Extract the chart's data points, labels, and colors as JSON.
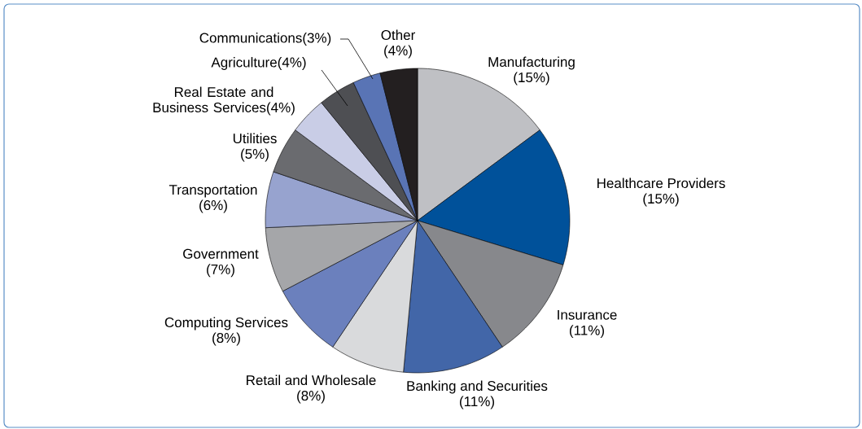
{
  "chart_data": {
    "type": "pie",
    "categories": [
      "Manufacturing",
      "Healthcare Providers",
      "Insurance",
      "Banking and Securities",
      "Retail and Wholesale",
      "Computing Services",
      "Government",
      "Transportation",
      "Utilities",
      "Real Estate and Business Services",
      "Agriculture",
      "Communications",
      "Other"
    ],
    "values": [
      15,
      15,
      11,
      11,
      8,
      8,
      7,
      6,
      5,
      4,
      4,
      3,
      4
    ],
    "value_labels": [
      "(15%)",
      "(15%)",
      "(11%)",
      "(11%)",
      "(8%)",
      "(8%)",
      "(7%)",
      "(6%)",
      "(5%)",
      "(4%)",
      "(4%)",
      "(3%)",
      "(4%)"
    ],
    "colors": [
      "#bfc0c4",
      "#00519a",
      "#87888c",
      "#4266a8",
      "#d9dadc",
      "#6b80bd",
      "#a5a6a9",
      "#97a3cf",
      "#6a6b6f",
      "#c9cde6",
      "#4e4f53",
      "#5974b5",
      "#231f20"
    ]
  }
}
